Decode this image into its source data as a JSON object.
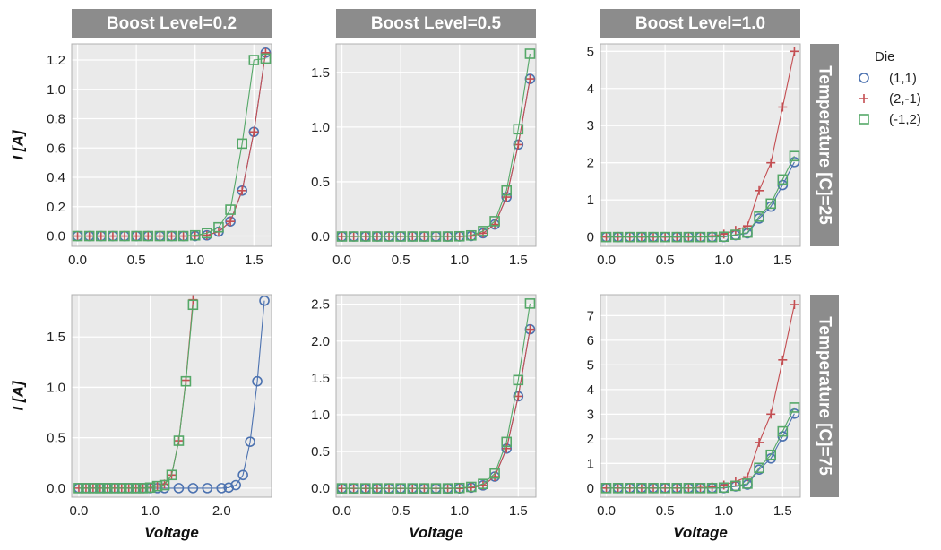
{
  "chart_data": {
    "type": "line",
    "facet_columns": {
      "label": "Boost Level",
      "values": [
        "0.2",
        "0.5",
        "1.0"
      ]
    },
    "facet_rows": {
      "label": "Temperature [C]",
      "values": [
        "25",
        "75"
      ]
    },
    "col_strip_labels": [
      "Boost Level=0.2",
      "Boost Level=0.5",
      "Boost Level=1.0"
    ],
    "row_strip_labels": [
      "Temperature [C]=25",
      "Temperature [C]=75"
    ],
    "xlabel": "Voltage",
    "ylabel": "I [A]",
    "legend": {
      "title": "Die",
      "placement": "right",
      "entries": [
        {
          "label": "(1,1)",
          "color": "#4c72b0",
          "marker": "circle"
        },
        {
          "label": "(2,-1)",
          "color": "#c44e52",
          "marker": "plus"
        },
        {
          "label": "(-1,2)",
          "color": "#55a868",
          "marker": "square"
        }
      ]
    },
    "panels": [
      {
        "row": 0,
        "col": 0,
        "xlim": [
          -0.05,
          1.65
        ],
        "ylim": [
          -0.07,
          1.31
        ],
        "xticks": [
          "0.0",
          "0.5",
          "1.0",
          "1.5"
        ],
        "xtick_values": [
          0,
          0.5,
          1.0,
          1.5
        ],
        "yticks": [
          "0.0",
          "0.2",
          "0.4",
          "0.6",
          "0.8",
          "1.0",
          "1.2"
        ],
        "ytick_values": [
          0,
          0.2,
          0.4,
          0.6,
          0.8,
          1.0,
          1.2
        ],
        "series": [
          {
            "name": "(1,1)",
            "x": [
              0,
              0.1,
              0.2,
              0.3,
              0.4,
              0.5,
              0.6,
              0.7,
              0.8,
              0.9,
              1.0,
              1.1,
              1.2,
              1.3,
              1.4,
              1.5,
              1.6
            ],
            "y": [
              0,
              0,
              0,
              0,
              0,
              0,
              0,
              0,
              0,
              0,
              0,
              0.005,
              0.03,
              0.1,
              0.31,
              0.71,
              1.25
            ]
          },
          {
            "name": "(2,-1)",
            "x": [
              0,
              0.1,
              0.2,
              0.3,
              0.4,
              0.5,
              0.6,
              0.7,
              0.8,
              0.9,
              1.0,
              1.1,
              1.2,
              1.3,
              1.4,
              1.5,
              1.6
            ],
            "y": [
              0,
              0,
              0,
              0,
              0,
              0,
              0,
              0,
              0,
              0,
              0,
              0.005,
              0.03,
              0.1,
              0.31,
              0.71,
              1.25
            ]
          },
          {
            "name": "(-1,2)",
            "x": [
              0,
              0.1,
              0.2,
              0.3,
              0.4,
              0.5,
              0.6,
              0.7,
              0.8,
              0.9,
              1.0,
              1.1,
              1.2,
              1.3,
              1.4,
              1.5,
              1.6
            ],
            "y": [
              0,
              0,
              0,
              0,
              0,
              0,
              0,
              0,
              0,
              0,
              0.005,
              0.02,
              0.06,
              0.18,
              0.63,
              1.2,
              1.21
            ]
          }
        ]
      },
      {
        "row": 0,
        "col": 1,
        "xlim": [
          -0.05,
          1.65
        ],
        "ylim": [
          -0.09,
          1.76
        ],
        "xticks": [
          "0.0",
          "0.5",
          "1.0",
          "1.5"
        ],
        "xtick_values": [
          0,
          0.5,
          1.0,
          1.5
        ],
        "yticks": [
          "0.0",
          "0.5",
          "1.0",
          "1.5"
        ],
        "ytick_values": [
          0,
          0.5,
          1.0,
          1.5
        ],
        "series": [
          {
            "name": "(1,1)",
            "x": [
              0,
              0.1,
              0.2,
              0.3,
              0.4,
              0.5,
              0.6,
              0.7,
              0.8,
              0.9,
              1.0,
              1.1,
              1.2,
              1.3,
              1.4,
              1.5,
              1.6
            ],
            "y": [
              0,
              0,
              0,
              0,
              0,
              0,
              0,
              0,
              0,
              0,
              0,
              0.005,
              0.03,
              0.11,
              0.36,
              0.84,
              1.44
            ]
          },
          {
            "name": "(2,-1)",
            "x": [
              0,
              0.1,
              0.2,
              0.3,
              0.4,
              0.5,
              0.6,
              0.7,
              0.8,
              0.9,
              1.0,
              1.1,
              1.2,
              1.3,
              1.4,
              1.5,
              1.6
            ],
            "y": [
              0,
              0,
              0,
              0,
              0,
              0,
              0,
              0,
              0,
              0,
              0,
              0.005,
              0.03,
              0.11,
              0.36,
              0.84,
              1.44
            ]
          },
          {
            "name": "(-1,2)",
            "x": [
              0,
              0.1,
              0.2,
              0.3,
              0.4,
              0.5,
              0.6,
              0.7,
              0.8,
              0.9,
              1.0,
              1.1,
              1.2,
              1.3,
              1.4,
              1.5,
              1.6
            ],
            "y": [
              0,
              0,
              0,
              0,
              0,
              0,
              0,
              0,
              0,
              0,
              0.002,
              0.01,
              0.05,
              0.14,
              0.42,
              0.98,
              1.67
            ]
          }
        ]
      },
      {
        "row": 0,
        "col": 2,
        "xlim": [
          -0.05,
          1.65
        ],
        "ylim": [
          -0.25,
          5.2
        ],
        "xticks": [
          "0.0",
          "0.5",
          "1.0",
          "1.5"
        ],
        "xtick_values": [
          0,
          0.5,
          1.0,
          1.5
        ],
        "yticks": [
          "0",
          "1",
          "2",
          "3",
          "4",
          "5"
        ],
        "ytick_values": [
          0,
          1,
          2,
          3,
          4,
          5
        ],
        "series": [
          {
            "name": "(1,1)",
            "x": [
              0,
              0.1,
              0.2,
              0.3,
              0.4,
              0.5,
              0.6,
              0.7,
              0.8,
              0.9,
              1.0,
              1.1,
              1.2,
              1.3,
              1.4,
              1.5,
              1.6
            ],
            "y": [
              0,
              0,
              0,
              0,
              0,
              0,
              0,
              0,
              0,
              0,
              0,
              0.05,
              0.1,
              0.5,
              0.82,
              1.4,
              2.02
            ]
          },
          {
            "name": "(2,-1)",
            "x": [
              0,
              0.1,
              0.2,
              0.3,
              0.4,
              0.5,
              0.6,
              0.7,
              0.8,
              0.9,
              1.0,
              1.1,
              1.2,
              1.3,
              1.4,
              1.5,
              1.6
            ],
            "y": [
              0,
              0,
              0,
              0,
              0,
              0,
              0,
              0,
              0.01,
              0.03,
              0.08,
              0.18,
              0.3,
              1.25,
              2.0,
              3.5,
              5.0
            ]
          },
          {
            "name": "(-1,2)",
            "x": [
              0,
              0.1,
              0.2,
              0.3,
              0.4,
              0.5,
              0.6,
              0.7,
              0.8,
              0.9,
              1.0,
              1.1,
              1.2,
              1.3,
              1.4,
              1.5,
              1.6
            ],
            "y": [
              0,
              0,
              0,
              0,
              0,
              0,
              0,
              0,
              0,
              0,
              0.01,
              0.06,
              0.12,
              0.55,
              0.9,
              1.55,
              2.18
            ]
          }
        ]
      },
      {
        "row": 1,
        "col": 0,
        "xlim": [
          -0.1,
          2.7
        ],
        "ylim": [
          -0.09,
          1.92
        ],
        "xticks": [
          "0.0",
          "1.0",
          "2.0"
        ],
        "xtick_values": [
          0,
          1.0,
          2.0
        ],
        "yticks": [
          "0.0",
          "0.5",
          "1.0",
          "1.5"
        ],
        "ytick_values": [
          0,
          0.5,
          1.0,
          1.5
        ],
        "series": [
          {
            "name": "(1,1)",
            "x": [
              0,
              0.1,
              0.2,
              0.3,
              0.4,
              0.5,
              0.6,
              0.7,
              0.8,
              0.9,
              1.0,
              1.1,
              1.2,
              1.4,
              1.6,
              1.8,
              2.0,
              2.1,
              2.2,
              2.3,
              2.4,
              2.5,
              2.6
            ],
            "y": [
              0,
              0,
              0,
              0,
              0,
              0,
              0,
              0,
              0,
              0,
              0,
              0,
              0,
              0,
              0,
              0,
              0,
              0.005,
              0.03,
              0.13,
              0.46,
              1.06,
              1.86
            ]
          },
          {
            "name": "(2,-1)",
            "x": [
              0,
              0.1,
              0.2,
              0.3,
              0.4,
              0.5,
              0.6,
              0.7,
              0.8,
              0.9,
              1.0,
              1.1,
              1.2,
              1.3,
              1.4,
              1.5,
              1.6
            ],
            "y": [
              0,
              0,
              0,
              0,
              0,
              0,
              0,
              0,
              0,
              0,
              0.005,
              0.02,
              0.04,
              0.13,
              0.47,
              1.07,
              1.87
            ]
          },
          {
            "name": "(-1,2)",
            "x": [
              0,
              0.1,
              0.2,
              0.3,
              0.4,
              0.5,
              0.6,
              0.7,
              0.8,
              0.9,
              1.0,
              1.1,
              1.2,
              1.3,
              1.4,
              1.5,
              1.6
            ],
            "y": [
              0,
              0,
              0,
              0,
              0,
              0,
              0,
              0,
              0,
              0,
              0.005,
              0.02,
              0.03,
              0.13,
              0.47,
              1.06,
              1.82
            ]
          }
        ]
      },
      {
        "row": 1,
        "col": 1,
        "xlim": [
          -0.05,
          1.65
        ],
        "ylim": [
          -0.12,
          2.63
        ],
        "xticks": [
          "0.0",
          "0.5",
          "1.0",
          "1.5"
        ],
        "xtick_values": [
          0,
          0.5,
          1.0,
          1.5
        ],
        "yticks": [
          "0.0",
          "0.5",
          "1.0",
          "1.5",
          "2.0",
          "2.5"
        ],
        "ytick_values": [
          0,
          0.5,
          1.0,
          1.5,
          2.0,
          2.5
        ],
        "series": [
          {
            "name": "(1,1)",
            "x": [
              0,
              0.1,
              0.2,
              0.3,
              0.4,
              0.5,
              0.6,
              0.7,
              0.8,
              0.9,
              1.0,
              1.1,
              1.2,
              1.3,
              1.4,
              1.5,
              1.6
            ],
            "y": [
              0,
              0,
              0,
              0,
              0,
              0,
              0,
              0,
              0,
              0,
              0,
              0.01,
              0.04,
              0.16,
              0.54,
              1.25,
              2.16
            ]
          },
          {
            "name": "(2,-1)",
            "x": [
              0,
              0.1,
              0.2,
              0.3,
              0.4,
              0.5,
              0.6,
              0.7,
              0.8,
              0.9,
              1.0,
              1.1,
              1.2,
              1.3,
              1.4,
              1.5,
              1.6
            ],
            "y": [
              0,
              0,
              0,
              0,
              0,
              0,
              0,
              0,
              0,
              0,
              0,
              0.01,
              0.04,
              0.16,
              0.54,
              1.25,
              2.16
            ]
          },
          {
            "name": "(-1,2)",
            "x": [
              0,
              0.1,
              0.2,
              0.3,
              0.4,
              0.5,
              0.6,
              0.7,
              0.8,
              0.9,
              1.0,
              1.1,
              1.2,
              1.3,
              1.4,
              1.5,
              1.6
            ],
            "y": [
              0,
              0,
              0,
              0,
              0,
              0,
              0,
              0,
              0,
              0,
              0.005,
              0.02,
              0.06,
              0.2,
              0.63,
              1.47,
              2.51
            ]
          }
        ]
      },
      {
        "row": 1,
        "col": 2,
        "xlim": [
          -0.05,
          1.65
        ],
        "ylim": [
          -0.37,
          7.85
        ],
        "xticks": [
          "0.0",
          "0.5",
          "1.0",
          "1.5"
        ],
        "xtick_values": [
          0,
          0.5,
          1.0,
          1.5
        ],
        "yticks": [
          "0",
          "1",
          "2",
          "3",
          "4",
          "5",
          "6",
          "7"
        ],
        "ytick_values": [
          0,
          1,
          2,
          3,
          4,
          5,
          6,
          7
        ],
        "series": [
          {
            "name": "(1,1)",
            "x": [
              0,
              0.1,
              0.2,
              0.3,
              0.4,
              0.5,
              0.6,
              0.7,
              0.8,
              0.9,
              1.0,
              1.1,
              1.2,
              1.3,
              1.4,
              1.5,
              1.6
            ],
            "y": [
              0,
              0,
              0,
              0,
              0,
              0,
              0,
              0,
              0,
              0,
              0,
              0.07,
              0.14,
              0.75,
              1.2,
              2.1,
              3.02
            ]
          },
          {
            "name": "(2,-1)",
            "x": [
              0,
              0.1,
              0.2,
              0.3,
              0.4,
              0.5,
              0.6,
              0.7,
              0.8,
              0.9,
              1.0,
              1.1,
              1.2,
              1.3,
              1.4,
              1.5,
              1.6
            ],
            "y": [
              0,
              0,
              0,
              0,
              0,
              0,
              0,
              0,
              0.02,
              0.05,
              0.12,
              0.27,
              0.45,
              1.85,
              3.0,
              5.2,
              7.45
            ]
          },
          {
            "name": "(-1,2)",
            "x": [
              0,
              0.1,
              0.2,
              0.3,
              0.4,
              0.5,
              0.6,
              0.7,
              0.8,
              0.9,
              1.0,
              1.1,
              1.2,
              1.3,
              1.4,
              1.5,
              1.6
            ],
            "y": [
              0,
              0,
              0,
              0,
              0,
              0,
              0,
              0,
              0,
              0,
              0.02,
              0.09,
              0.18,
              0.82,
              1.35,
              2.3,
              3.27
            ]
          }
        ]
      }
    ]
  }
}
